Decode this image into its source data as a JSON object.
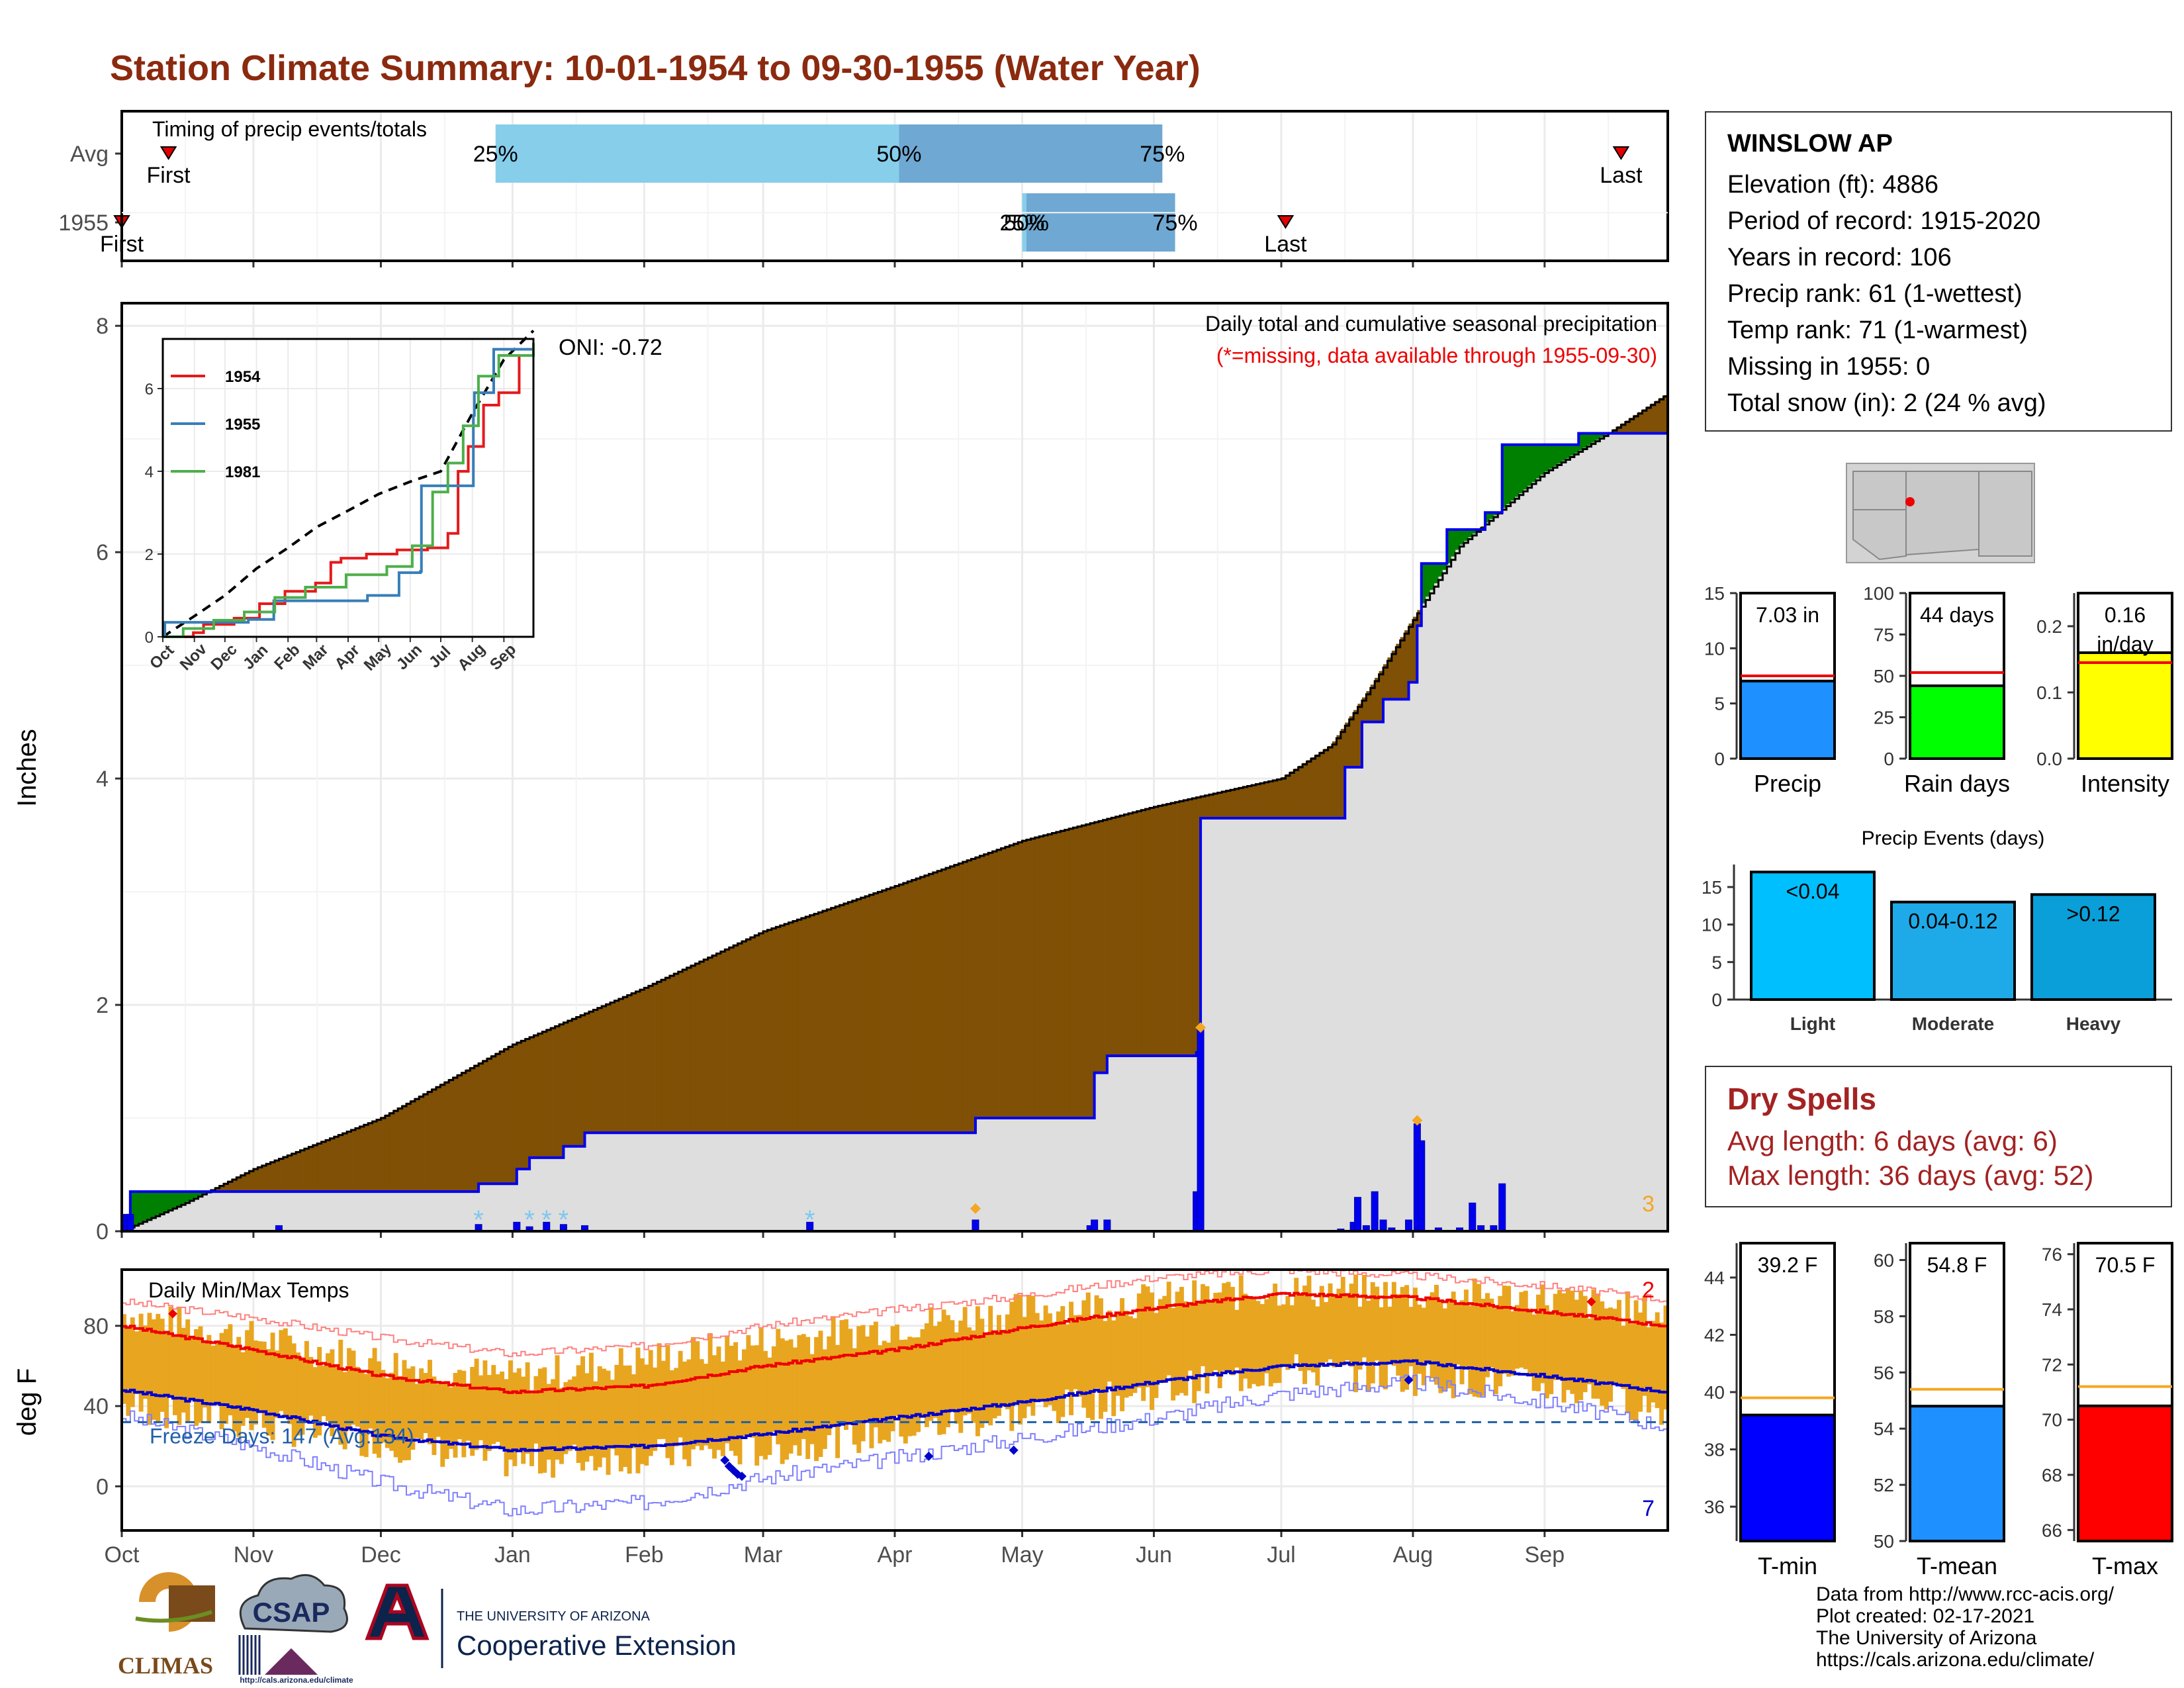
{
  "title": "Station Climate Summary: 10-01-1954 to 09-30-1955 (Water Year)",
  "station": {
    "name": "WINSLOW AP",
    "lines": [
      "Elevation (ft): 4886",
      "Period of record: 1915-2020",
      "Years in record: 106",
      "Precip rank: 61 (1-wettest)",
      "Temp rank: 71 (1-warmest)",
      "Missing in 1955: 0",
      "Total snow (in): 2 (24 % avg)"
    ]
  },
  "dry_spells": {
    "title": "Dry Spells",
    "avg_length": "Avg length: 6 days (avg: 6)",
    "max_length": "Max length: 36 days (avg: 52)"
  },
  "credits": [
    "Data from http://www.rcc-acis.org/",
    "Plot created: 02-17-2021",
    "The University of Arizona",
    "https://cals.arizona.edu/climate/"
  ],
  "logos": {
    "climas": "CLIMAS",
    "csap": "CSAP",
    "csap_url": "http://cals.arizona.edu/climate",
    "ua_top": "THE UNIVERSITY OF ARIZONA",
    "ua_bottom": "Cooperative Extension"
  },
  "colors": {
    "title": "#8b2a0f",
    "above_avg": "#008000",
    "below_avg": "#7f5005",
    "observed": "#0000ee",
    "missing_note": "#ee0000",
    "tmax": "#ee0000",
    "tmin": "#0000cc",
    "daily_bar": "#e8a51f",
    "dry": "#a32222"
  },
  "chart_data": [
    {
      "id": "timing",
      "type": "bar",
      "title": "Timing of precip events/totals",
      "categories": [
        "Avg",
        "1955"
      ],
      "x_axis": "day of water year",
      "series": [
        {
          "row": "Avg",
          "first": 11,
          "p25": 88,
          "p50": 183,
          "p75": 245,
          "last": 353
        },
        {
          "row": "1955",
          "first": 0,
          "p25": 212,
          "p50": 213,
          "p75": 248,
          "last": 274
        }
      ],
      "labels": {
        "first": "First",
        "last": "Last",
        "p25": "25%",
        "p50": "50%",
        "p75": "75%"
      }
    },
    {
      "id": "precip",
      "type": "area",
      "title": "Daily total and cumulative seasonal precipitation",
      "note": "(*=missing, data available through 1955-09-30)",
      "oni": "ONI: -0.72",
      "ylabel": "Inches",
      "ylim": [
        0,
        8.2
      ],
      "yticks": [
        0,
        2,
        4,
        6,
        8
      ],
      "months": [
        "Oct",
        "Nov",
        "Dec",
        "Jan",
        "Feb",
        "Mar",
        "Apr",
        "May",
        "Jun",
        "Jul",
        "Aug",
        "Sep"
      ],
      "month_start_days": [
        0,
        31,
        61,
        92,
        123,
        151,
        182,
        212,
        243,
        273,
        304,
        335
      ],
      "avg_cumulative": [
        [
          0,
          0.0
        ],
        [
          15,
          0.25
        ],
        [
          31,
          0.55
        ],
        [
          61,
          1.0
        ],
        [
          92,
          1.65
        ],
        [
          123,
          2.15
        ],
        [
          151,
          2.65
        ],
        [
          182,
          3.05
        ],
        [
          212,
          3.45
        ],
        [
          243,
          3.75
        ],
        [
          273,
          4.0
        ],
        [
          285,
          4.3
        ],
        [
          294,
          4.8
        ],
        [
          304,
          5.4
        ],
        [
          315,
          6.05
        ],
        [
          335,
          6.7
        ],
        [
          350,
          7.05
        ],
        [
          364,
          7.4
        ]
      ],
      "observed_cumulative": [
        [
          0,
          0.0
        ],
        [
          2,
          0.35
        ],
        [
          36,
          0.35
        ],
        [
          84,
          0.42
        ],
        [
          93,
          0.55
        ],
        [
          96,
          0.65
        ],
        [
          104,
          0.75
        ],
        [
          109,
          0.87
        ],
        [
          162,
          0.87
        ],
        [
          201,
          1.0
        ],
        [
          229,
          1.4
        ],
        [
          232,
          1.55
        ],
        [
          253,
          1.58
        ],
        [
          254,
          3.65
        ],
        [
          287,
          3.65
        ],
        [
          288,
          4.1
        ],
        [
          292,
          4.5
        ],
        [
          297,
          4.7
        ],
        [
          303,
          4.85
        ],
        [
          305,
          5.35
        ],
        [
          306,
          5.9
        ],
        [
          312,
          6.2
        ],
        [
          321,
          6.35
        ],
        [
          325,
          6.95
        ],
        [
          343,
          7.05
        ],
        [
          364,
          7.05
        ]
      ],
      "daily": [
        [
          1,
          0.15
        ],
        [
          2,
          0.15
        ],
        [
          37,
          0.05
        ],
        [
          84,
          0.06
        ],
        [
          93,
          0.08
        ],
        [
          96,
          0.04
        ],
        [
          100,
          0.08
        ],
        [
          104,
          0.06
        ],
        [
          109,
          0.05
        ],
        [
          162,
          0.08
        ],
        [
          201,
          0.1
        ],
        [
          228,
          0.05
        ],
        [
          229,
          0.1
        ],
        [
          232,
          0.1
        ],
        [
          253,
          0.35
        ],
        [
          254,
          1.8
        ],
        [
          287,
          0.02
        ],
        [
          290,
          0.08
        ],
        [
          291,
          0.3
        ],
        [
          293,
          0.05
        ],
        [
          295,
          0.35
        ],
        [
          297,
          0.1
        ],
        [
          299,
          0.03
        ],
        [
          303,
          0.1
        ],
        [
          305,
          0.95
        ],
        [
          306,
          0.8
        ],
        [
          310,
          0.03
        ],
        [
          315,
          0.03
        ],
        [
          318,
          0.25
        ],
        [
          320,
          0.05
        ],
        [
          323,
          0.05
        ],
        [
          325,
          0.42
        ]
      ],
      "snow_days": [
        84,
        96,
        100,
        104,
        162
      ],
      "big_events": [
        [
          201,
          0.2
        ],
        [
          254,
          1.8
        ],
        [
          305,
          0.98
        ]
      ],
      "corner_count": "3",
      "inset": {
        "ylim": [
          0,
          7.2
        ],
        "yticks": [
          0,
          2,
          4,
          6
        ],
        "months": [
          "Oct",
          "Nov",
          "Dec",
          "Jan",
          "Feb",
          "Mar",
          "Apr",
          "May",
          "Jun",
          "Jul",
          "Aug",
          "Sep"
        ],
        "series": [
          {
            "name": "1954",
            "color": "#e41a1c",
            "values": [
              [
                0,
                0
              ],
              [
                30,
                0.1
              ],
              [
                40,
                0.3
              ],
              [
                70,
                0.45
              ],
              [
                95,
                0.8
              ],
              [
                120,
                1.1
              ],
              [
                150,
                1.3
              ],
              [
                165,
                1.8
              ],
              [
                175,
                1.9
              ],
              [
                200,
                2.0
              ],
              [
                230,
                2.1
              ],
              [
                260,
                2.15
              ],
              [
                280,
                2.5
              ],
              [
                290,
                4.0
              ],
              [
                300,
                4.6
              ],
              [
                315,
                5.6
              ],
              [
                330,
                5.9
              ],
              [
                350,
                6.8
              ],
              [
                364,
                7.0
              ]
            ]
          },
          {
            "name": "1955",
            "color": "#377eb8",
            "values": [
              [
                0,
                0
              ],
              [
                2,
                0.35
              ],
              [
                36,
                0.35
              ],
              [
                84,
                0.42
              ],
              [
                109,
                0.87
              ],
              [
                162,
                0.87
              ],
              [
                201,
                1.0
              ],
              [
                232,
                1.55
              ],
              [
                253,
                1.58
              ],
              [
                254,
                3.65
              ],
              [
                287,
                3.65
              ],
              [
                305,
                5.35
              ],
              [
                306,
                5.9
              ],
              [
                325,
                6.95
              ],
              [
                364,
                7.05
              ]
            ]
          },
          {
            "name": "1981",
            "color": "#4daf4a",
            "values": [
              [
                0,
                0
              ],
              [
                20,
                0.2
              ],
              [
                50,
                0.4
              ],
              [
                80,
                0.6
              ],
              [
                110,
                0.95
              ],
              [
                140,
                1.2
              ],
              [
                180,
                1.5
              ],
              [
                220,
                1.7
              ],
              [
                245,
                2.2
              ],
              [
                265,
                3.5
              ],
              [
                280,
                4.2
              ],
              [
                295,
                5.1
              ],
              [
                310,
                6.3
              ],
              [
                330,
                6.8
              ],
              [
                364,
                7.1
              ]
            ]
          }
        ],
        "average": [
          [
            0,
            0
          ],
          [
            31,
            0.5
          ],
          [
            61,
            1.0
          ],
          [
            92,
            1.65
          ],
          [
            123,
            2.15
          ],
          [
            151,
            2.65
          ],
          [
            182,
            3.05
          ],
          [
            212,
            3.45
          ],
          [
            243,
            3.75
          ],
          [
            273,
            4.0
          ],
          [
            304,
            5.4
          ],
          [
            335,
            6.7
          ],
          [
            364,
            7.4
          ]
        ]
      }
    },
    {
      "id": "temps",
      "type": "line",
      "title": "Daily Min/Max Temps",
      "ylabel": "deg F",
      "ylim": [
        -22,
        108
      ],
      "yticks": [
        0,
        40,
        80
      ],
      "freeze_line": 32,
      "freeze_label": "Freeze Days: 147 (Avg:134)",
      "max_count": "2",
      "min_count": "7",
      "avg_max": [
        [
          0,
          80
        ],
        [
          31,
          68
        ],
        [
          61,
          55
        ],
        [
          92,
          47
        ],
        [
          123,
          50
        ],
        [
          151,
          60
        ],
        [
          182,
          68
        ],
        [
          212,
          79
        ],
        [
          243,
          89
        ],
        [
          273,
          96
        ],
        [
          304,
          94
        ],
        [
          335,
          87
        ],
        [
          364,
          80
        ]
      ],
      "avg_min": [
        [
          0,
          48
        ],
        [
          31,
          38
        ],
        [
          61,
          25
        ],
        [
          92,
          18
        ],
        [
          123,
          20
        ],
        [
          151,
          26
        ],
        [
          182,
          34
        ],
        [
          212,
          42
        ],
        [
          243,
          52
        ],
        [
          273,
          60
        ],
        [
          304,
          62
        ],
        [
          335,
          55
        ],
        [
          364,
          47
        ]
      ],
      "rec_max": [
        [
          0,
          92
        ],
        [
          31,
          84
        ],
        [
          61,
          74
        ],
        [
          92,
          66
        ],
        [
          123,
          70
        ],
        [
          151,
          80
        ],
        [
          182,
          88
        ],
        [
          212,
          95
        ],
        [
          243,
          104
        ],
        [
          273,
          108
        ],
        [
          304,
          105
        ],
        [
          335,
          100
        ],
        [
          364,
          93
        ]
      ],
      "rec_min": [
        [
          0,
          35
        ],
        [
          31,
          20
        ],
        [
          61,
          2
        ],
        [
          92,
          -12
        ],
        [
          123,
          -8
        ],
        [
          151,
          4
        ],
        [
          182,
          14
        ],
        [
          212,
          24
        ],
        [
          243,
          34
        ],
        [
          273,
          46
        ],
        [
          304,
          52
        ],
        [
          335,
          42
        ],
        [
          364,
          30
        ]
      ],
      "obs_range_approx": {
        "max_hi": [
          [
            0,
            86
          ],
          [
            61,
            62
          ],
          [
            92,
            54
          ],
          [
            151,
            72
          ],
          [
            212,
            88
          ],
          [
            273,
            98
          ],
          [
            335,
            94
          ],
          [
            364,
            85
          ]
        ],
        "min_lo": [
          [
            0,
            40
          ],
          [
            61,
            22
          ],
          [
            92,
            12
          ],
          [
            151,
            18
          ],
          [
            212,
            36
          ],
          [
            273,
            58
          ],
          [
            335,
            50
          ],
          [
            364,
            38
          ]
        ]
      },
      "record_high_marks": [
        [
          12,
          86
        ],
        [
          346,
          92
        ]
      ],
      "record_low_marks": [
        [
          142,
          13
        ],
        [
          143,
          10
        ],
        [
          144,
          8
        ],
        [
          145,
          6
        ],
        [
          146,
          5
        ],
        [
          190,
          15
        ],
        [
          210,
          18
        ],
        [
          303,
          53
        ]
      ]
    },
    {
      "id": "gauges",
      "type": "bar",
      "categories": [
        "Precip",
        "Rain days",
        "Intensity"
      ],
      "values": [
        7.03,
        44,
        0.16
      ],
      "averages": [
        7.5,
        52,
        0.145
      ],
      "labels": [
        "7.03 in",
        "44 days",
        "0.16\nin/day"
      ],
      "colors": [
        "#1e90ff",
        "#00ff00",
        "#ffff00"
      ],
      "ylims": [
        [
          0,
          15
        ],
        [
          0,
          100
        ],
        [
          0,
          0.25
        ]
      ],
      "yticks": [
        [
          0,
          5,
          10,
          15
        ],
        [
          0,
          25,
          50,
          75,
          100
        ],
        [
          0.0,
          0.1,
          0.2
        ]
      ]
    },
    {
      "id": "events",
      "type": "bar",
      "title": "Precip Events (days)",
      "categories": [
        "Light",
        "Moderate",
        "Heavy"
      ],
      "values": [
        17,
        13,
        14
      ],
      "labels": [
        "<0.04",
        "0.04-0.12",
        ">0.12"
      ],
      "colors": [
        "#00bfff",
        "#1eaae8",
        "#0a9fd8"
      ],
      "ylim": [
        0,
        18
      ],
      "yticks": [
        0,
        5,
        10,
        15
      ]
    },
    {
      "id": "temp_gauges",
      "type": "bar",
      "categories": [
        "T-min",
        "T-mean",
        "T-max"
      ],
      "values": [
        39.2,
        54.8,
        70.5
      ],
      "averages": [
        39.8,
        55.4,
        71.2
      ],
      "labels": [
        "39.2 F",
        "54.8 F",
        "70.5 F"
      ],
      "colors": [
        "#0000ff",
        "#1e90ff",
        "#ff0000"
      ],
      "ylims": [
        [
          34.8,
          45.2
        ],
        [
          50,
          60.6
        ],
        [
          65.6,
          76.4
        ]
      ],
      "yticks": [
        [
          36,
          38,
          40,
          42,
          44
        ],
        [
          50,
          52,
          54,
          56,
          58,
          60
        ],
        [
          66,
          68,
          70,
          72,
          74,
          76
        ]
      ]
    }
  ]
}
